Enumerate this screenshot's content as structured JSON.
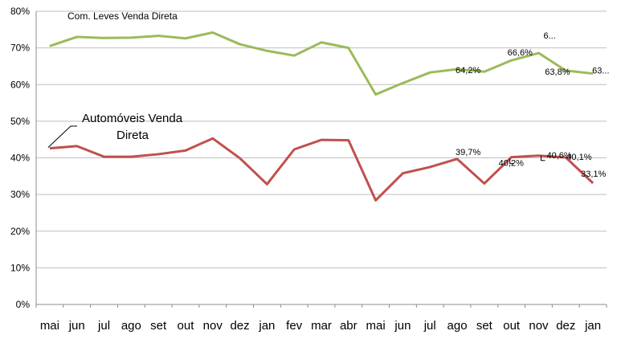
{
  "chart_data": {
    "type": "line",
    "categories": [
      "mai",
      "jun",
      "jul",
      "ago",
      "set",
      "out",
      "nov",
      "dez",
      "jan",
      "fev",
      "mar",
      "abr",
      "mai",
      "jun",
      "jul",
      "ago",
      "set",
      "out",
      "nov",
      "dez",
      "jan"
    ],
    "y_tick_labels": [
      "0%",
      "10%",
      "20%",
      "30%",
      "40%",
      "50%",
      "60%",
      "70%",
      "80%"
    ],
    "ylim": [
      0,
      80
    ],
    "grid": "horizontal",
    "series": [
      {
        "name": "Com. Leves Venda Direta",
        "color": "#9bbb59",
        "values": [
          70.5,
          73.0,
          72.7,
          72.8,
          73.3,
          72.6,
          74.2,
          71.0,
          69.2,
          67.9,
          71.5,
          70.0,
          57.3,
          60.4,
          63.3,
          64.2,
          63.5,
          66.6,
          68.6,
          63.8,
          63.0
        ]
      },
      {
        "name": "Automóveis Venda Direta",
        "color": "#c0504d",
        "values": [
          42.6,
          43.2,
          40.3,
          40.3,
          41.0,
          42.0,
          45.3,
          39.9,
          32.8,
          42.3,
          44.9,
          44.8,
          28.4,
          35.8,
          37.5,
          39.7,
          33.0,
          40.2,
          40.6,
          40.1,
          33.1
        ]
      }
    ],
    "data_labels": [
      {
        "series": 0,
        "index": 15,
        "text": "64,2%"
      },
      {
        "series": 0,
        "index": 17,
        "text": "66,6%"
      },
      {
        "series": 0,
        "index": 18,
        "text": "6..."
      },
      {
        "series": 0,
        "index": 19,
        "text": "63,8%"
      },
      {
        "series": 0,
        "index": 20,
        "text": "63..."
      },
      {
        "series": 1,
        "index": 15,
        "text": "39,7%"
      },
      {
        "series": 1,
        "index": 17,
        "text": "40,2%"
      },
      {
        "series": 1,
        "index": 18,
        "text": "40,6%"
      },
      {
        "series": 1,
        "index": 19,
        "text": "40,1%"
      },
      {
        "series": 1,
        "index": 20,
        "text": "33,1%"
      }
    ]
  }
}
